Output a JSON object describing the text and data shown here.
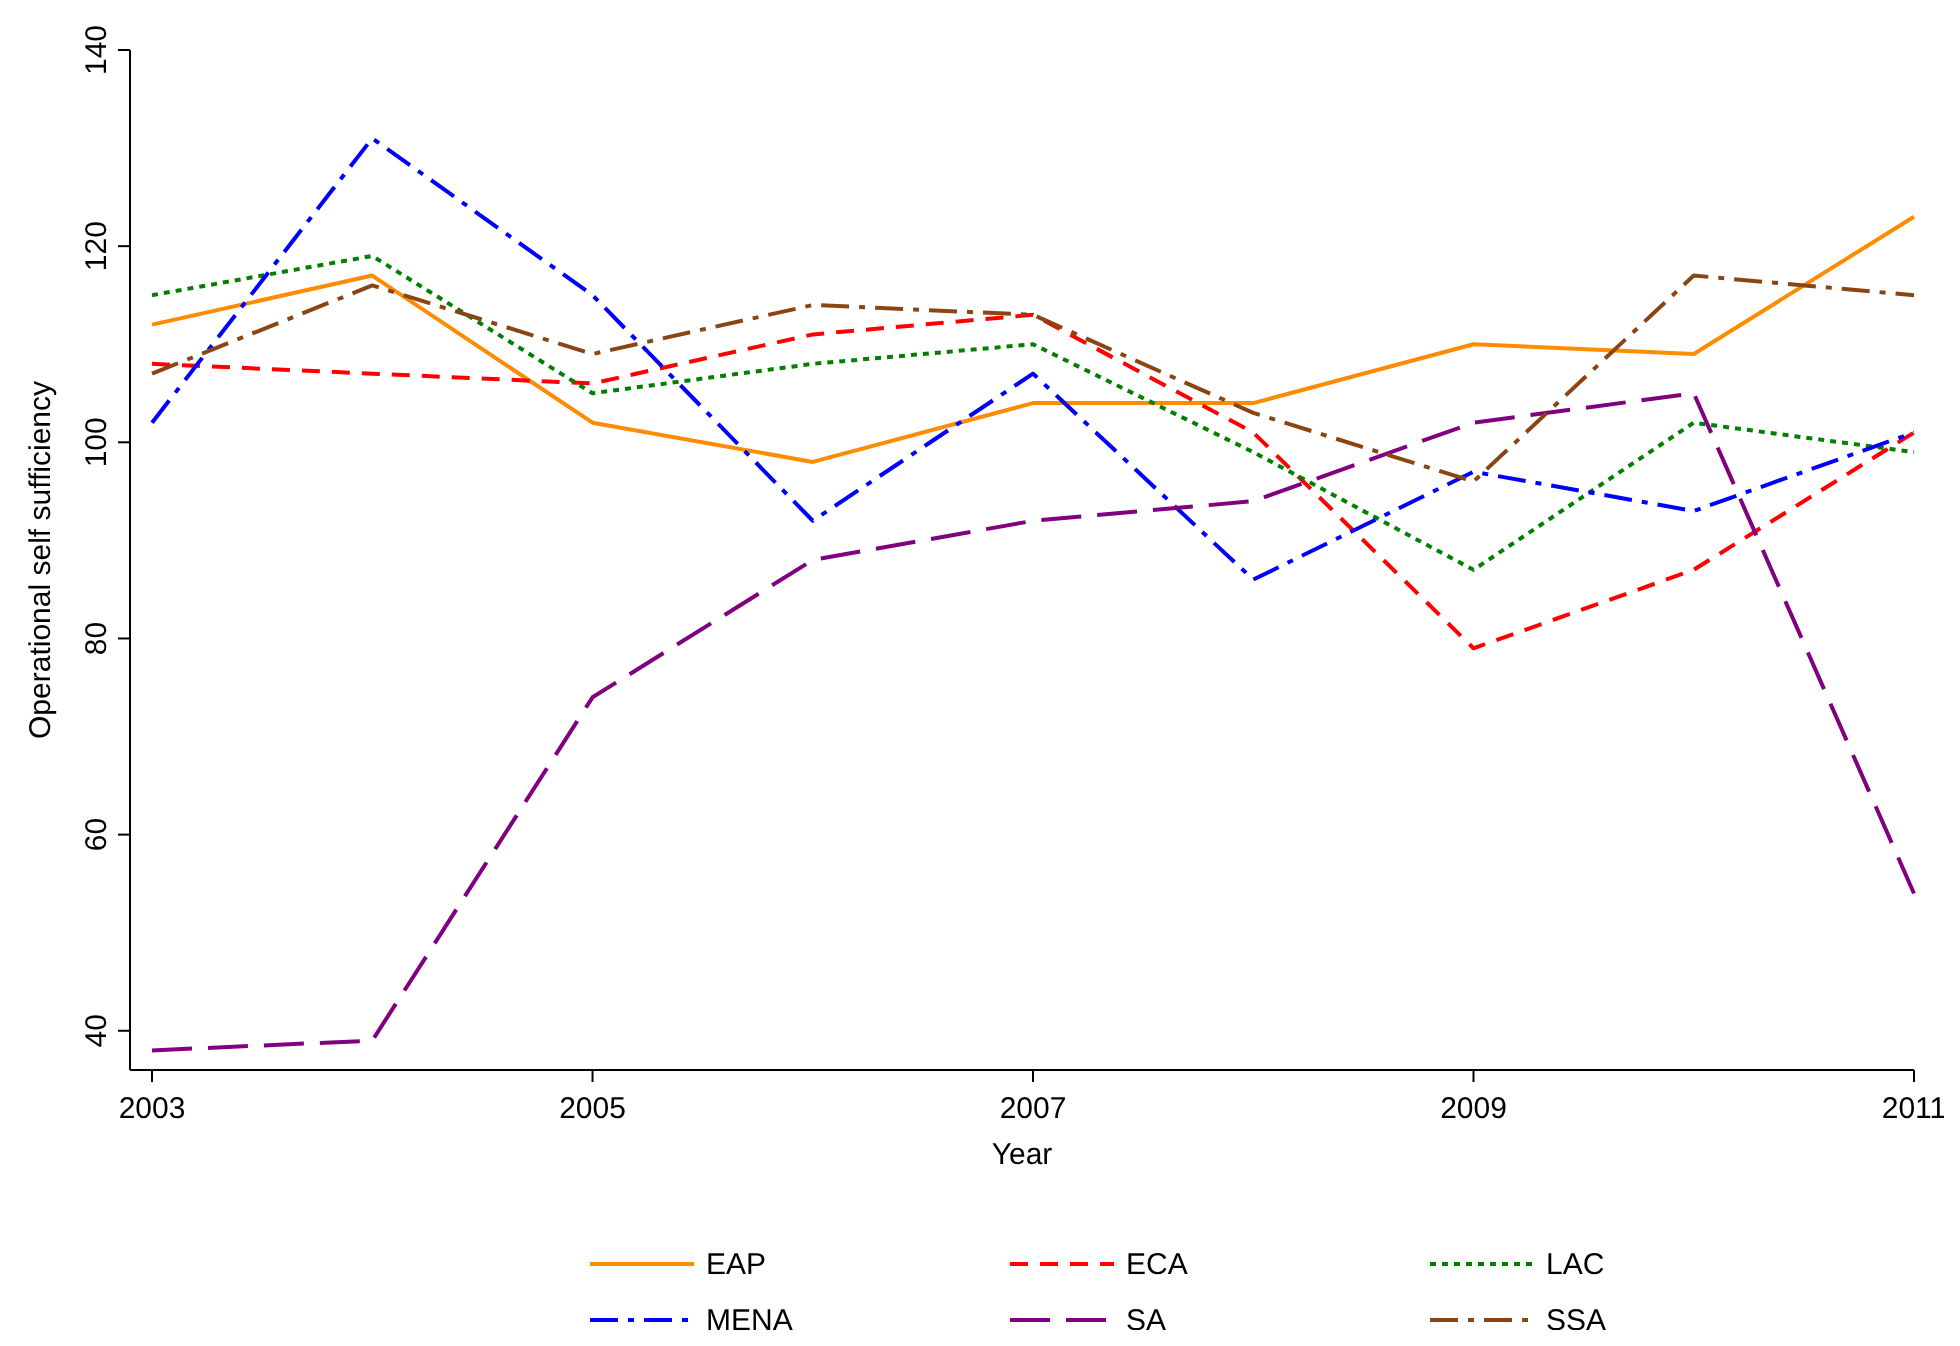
{
  "chart_data": {
    "type": "line",
    "xlabel": "Year",
    "ylabel": "Operational self sufficiency",
    "x": [
      2003,
      2004,
      2005,
      2006,
      2007,
      2008,
      2009,
      2010,
      2011
    ],
    "xlim": [
      2002.9,
      2011
    ],
    "xticks": [
      2003,
      2005,
      2007,
      2009,
      2011
    ],
    "ylim": [
      36,
      140
    ],
    "yticks": [
      40,
      60,
      80,
      100,
      120,
      140
    ],
    "grid": false,
    "legend": "bottom",
    "marker": "none",
    "series": [
      {
        "name": "EAP",
        "color": "#ff8c00",
        "line_style": "solid",
        "values": [
          112,
          117,
          102,
          98,
          104,
          104,
          110,
          109,
          123
        ]
      },
      {
        "name": "ECA",
        "color": "#ff0000",
        "line_style": "dashed",
        "values": [
          108,
          107,
          106,
          111,
          113,
          101,
          79,
          87,
          101
        ]
      },
      {
        "name": "LAC",
        "color": "#008000",
        "line_style": "dotted",
        "values": [
          115,
          119,
          105,
          108,
          110,
          99,
          87,
          102,
          99
        ]
      },
      {
        "name": "MENA",
        "color": "#0000ff",
        "line_style": "dashdot",
        "values": [
          102,
          131,
          115,
          92,
          107,
          86,
          97,
          93,
          101
        ]
      },
      {
        "name": "SA",
        "color": "#800080",
        "line_style": "longdash",
        "values": [
          38,
          39,
          74,
          88,
          92,
          94,
          102,
          105,
          54
        ]
      },
      {
        "name": "SSA",
        "color": "#8b4513",
        "line_style": "dashdot",
        "values": [
          107,
          116,
          109,
          114,
          113,
          103,
          96,
          117,
          115
        ]
      }
    ]
  }
}
